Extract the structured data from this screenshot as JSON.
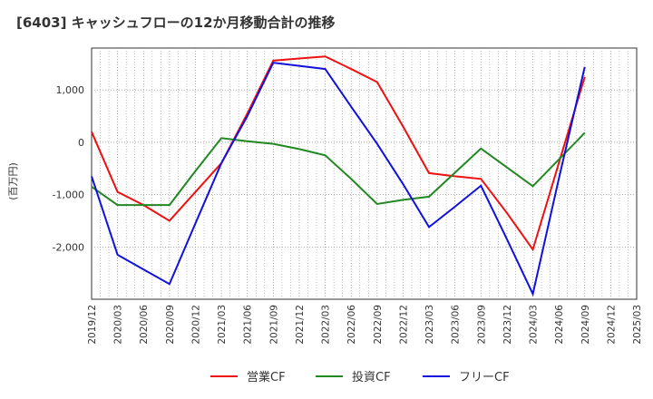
{
  "chart_data": {
    "type": "line",
    "title": "[6403]  キャッシュフローの12か月移動合計の推移",
    "xlabel": "",
    "ylabel": "(百万円)",
    "ylim": [
      -3000,
      1800
    ],
    "yticks": [
      1000,
      0,
      -1000,
      -2000
    ],
    "ytick_labels": [
      "1,000",
      "0",
      "-1,000",
      "-2,000"
    ],
    "categories": [
      "2019/12",
      "2020/03",
      "2020/06",
      "2020/09",
      "2020/12",
      "2021/03",
      "2021/06",
      "2021/09",
      "2021/12",
      "2022/03",
      "2022/06",
      "2022/09",
      "2022/12",
      "2023/03",
      "2023/06",
      "2023/09",
      "2023/12",
      "2024/03",
      "2024/06",
      "2024/09",
      "2024/12",
      "2025/03"
    ],
    "grid": true,
    "legend_position": "bottom",
    "series": [
      {
        "name": "営業CF",
        "color": "#ee1111",
        "values": [
          200,
          -950,
          -1200,
          -1500,
          -950,
          -400,
          550,
          1560,
          1600,
          1640,
          1400,
          1150,
          300,
          -590,
          -650,
          -700,
          -1350,
          -2050,
          -400,
          1250,
          null,
          null
        ]
      },
      {
        "name": "投資CF",
        "color": "#228822",
        "values": [
          -850,
          -1200,
          -1200,
          -1200,
          -550,
          80,
          20,
          -30,
          -130,
          -250,
          -700,
          -1180,
          -1100,
          -1040,
          -580,
          -120,
          -480,
          -840,
          -330,
          180,
          null,
          null
        ]
      },
      {
        "name": "フリーCF",
        "color": "#1111dd",
        "values": [
          -650,
          -2150,
          -2430,
          -2710,
          -1550,
          -400,
          500,
          1520,
          1460,
          1400,
          680,
          -30,
          -800,
          -1620,
          -1230,
          -830,
          -1850,
          -2900,
          -700,
          1440,
          null,
          null
        ]
      }
    ]
  }
}
